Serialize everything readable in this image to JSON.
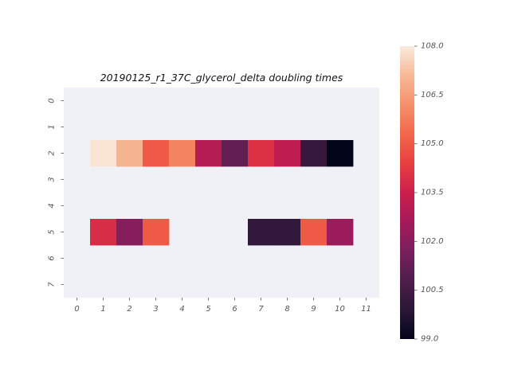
{
  "chart_data": {
    "type": "heatmap",
    "title": "20190125_r1_37C_glycerol_delta doubling times",
    "xlabel": "",
    "ylabel": "",
    "x_ticks": [
      "0",
      "1",
      "2",
      "3",
      "4",
      "5",
      "6",
      "7",
      "8",
      "9",
      "10",
      "11"
    ],
    "y_ticks": [
      "0",
      "1",
      "2",
      "3",
      "4",
      "5",
      "6",
      "7"
    ],
    "rows": 8,
    "cols": 12,
    "cells": [
      {
        "row": 2,
        "col": 1,
        "value": 107.9
      },
      {
        "row": 2,
        "col": 2,
        "value": 107.0
      },
      {
        "row": 2,
        "col": 3,
        "value": 105.0
      },
      {
        "row": 2,
        "col": 4,
        "value": 105.9
      },
      {
        "row": 2,
        "col": 5,
        "value": 103.0
      },
      {
        "row": 2,
        "col": 6,
        "value": 101.2
      },
      {
        "row": 2,
        "col": 7,
        "value": 104.0
      },
      {
        "row": 2,
        "col": 8,
        "value": 103.2
      },
      {
        "row": 2,
        "col": 9,
        "value": 100.2
      },
      {
        "row": 2,
        "col": 10,
        "value": 99.0
      },
      {
        "row": 5,
        "col": 1,
        "value": 103.9
      },
      {
        "row": 5,
        "col": 2,
        "value": 102.0
      },
      {
        "row": 5,
        "col": 3,
        "value": 105.0
      },
      {
        "row": 5,
        "col": 7,
        "value": 100.1
      },
      {
        "row": 5,
        "col": 8,
        "value": 100.1
      },
      {
        "row": 5,
        "col": 9,
        "value": 105.0
      },
      {
        "row": 5,
        "col": 10,
        "value": 102.4
      }
    ],
    "colorbar": {
      "min": 99.0,
      "max": 108.0,
      "ticks": [
        "99.0",
        "100.5",
        "102.0",
        "103.5",
        "105.0",
        "106.5",
        "108.0"
      ],
      "colormap": "rocket"
    },
    "missing_color": "#f0f1f6",
    "grid": false
  }
}
